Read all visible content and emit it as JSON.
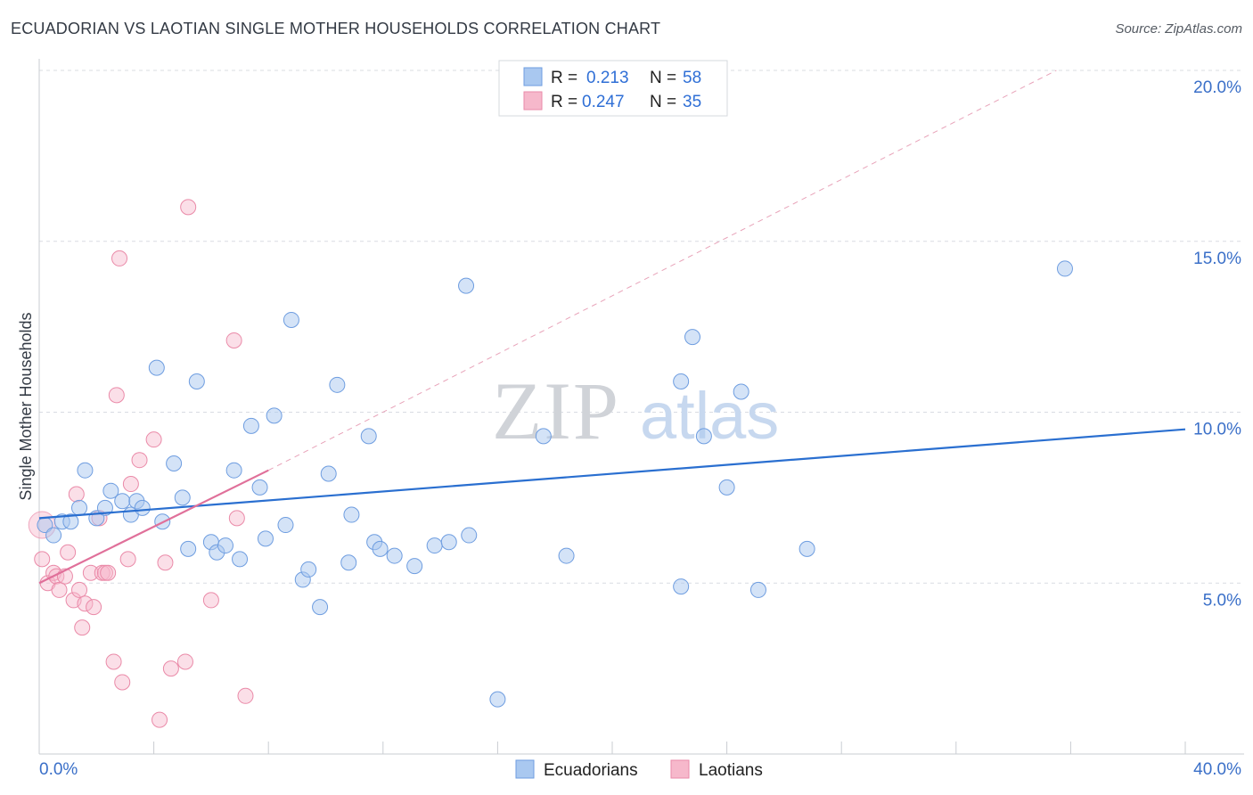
{
  "title": "ECUADORIAN VS LAOTIAN SINGLE MOTHER HOUSEHOLDS CORRELATION CHART",
  "source": "Source: ZipAtlas.com",
  "watermark": {
    "zip": "ZIP",
    "atlas": "atlas"
  },
  "colors": {
    "blue_fill": "#a9c8f0",
    "blue_stroke": "#6e9de0",
    "blue_line": "#2a6fd0",
    "pink_fill": "#f6b8cb",
    "pink_stroke": "#ea8aa8",
    "pink_line": "#e0709a",
    "grid": "#d9dce2",
    "axis_text": "#3a6fc8"
  },
  "legend": [
    {
      "r_label": "R =",
      "r_value": "0.213",
      "n_label": "N =",
      "n_value": "58",
      "series": "Ecuadorians"
    },
    {
      "r_label": "R =",
      "r_value": "0.247",
      "n_label": "N =",
      "n_value": "35",
      "series": "Laotians"
    }
  ],
  "chart_data": {
    "type": "scatter",
    "title": "ECUADORIAN VS LAOTIAN SINGLE MOTHER HOUSEHOLDS CORRELATION CHART",
    "xlabel": "",
    "ylabel": "Single Mother Households",
    "xlim": [
      0,
      40
    ],
    "ylim": [
      0,
      20
    ],
    "x_tick_labels": [
      "0.0%",
      "40.0%"
    ],
    "y_ticks": [
      5,
      10,
      15,
      20
    ],
    "y_tick_labels": [
      "5.0%",
      "10.0%",
      "15.0%",
      "20.0%"
    ],
    "series": [
      {
        "name": "Ecuadorians",
        "trend": {
          "x": [
            0,
            40
          ],
          "y": [
            6.9,
            9.5
          ]
        },
        "points": [
          [
            0.2,
            6.7
          ],
          [
            0.5,
            6.4
          ],
          [
            0.8,
            6.8
          ],
          [
            1.1,
            6.8
          ],
          [
            1.4,
            7.2
          ],
          [
            1.6,
            8.3
          ],
          [
            2.0,
            6.9
          ],
          [
            2.3,
            7.2
          ],
          [
            2.5,
            7.7
          ],
          [
            2.9,
            7.4
          ],
          [
            3.2,
            7.0
          ],
          [
            3.4,
            7.4
          ],
          [
            3.6,
            7.2
          ],
          [
            4.1,
            11.3
          ],
          [
            4.3,
            6.8
          ],
          [
            4.7,
            8.5
          ],
          [
            5.0,
            7.5
          ],
          [
            5.2,
            6.0
          ],
          [
            5.5,
            10.9
          ],
          [
            6.0,
            6.2
          ],
          [
            6.2,
            5.9
          ],
          [
            6.5,
            6.1
          ],
          [
            6.8,
            8.3
          ],
          [
            7.0,
            5.7
          ],
          [
            7.4,
            9.6
          ],
          [
            7.7,
            7.8
          ],
          [
            7.9,
            6.3
          ],
          [
            8.2,
            9.9
          ],
          [
            8.6,
            6.7
          ],
          [
            8.8,
            12.7
          ],
          [
            9.2,
            5.1
          ],
          [
            9.4,
            5.4
          ],
          [
            9.8,
            4.3
          ],
          [
            10.1,
            8.2
          ],
          [
            10.4,
            10.8
          ],
          [
            10.8,
            5.6
          ],
          [
            10.9,
            7.0
          ],
          [
            11.5,
            9.3
          ],
          [
            11.7,
            6.2
          ],
          [
            11.9,
            6.0
          ],
          [
            12.4,
            5.8
          ],
          [
            13.1,
            5.5
          ],
          [
            13.8,
            6.1
          ],
          [
            14.3,
            6.2
          ],
          [
            14.9,
            13.7
          ],
          [
            15.0,
            6.4
          ],
          [
            16.0,
            1.6
          ],
          [
            17.6,
            9.3
          ],
          [
            18.4,
            5.8
          ],
          [
            22.4,
            4.9
          ],
          [
            22.4,
            10.9
          ],
          [
            22.8,
            12.2
          ],
          [
            23.2,
            9.3
          ],
          [
            24.0,
            7.8
          ],
          [
            24.5,
            10.6
          ],
          [
            25.1,
            4.8
          ],
          [
            26.8,
            6.0
          ],
          [
            35.8,
            14.2
          ]
        ]
      },
      {
        "name": "Laotians",
        "trend": {
          "x": [
            0,
            8.0
          ],
          "y": [
            5.0,
            8.3
          ]
        },
        "points": [
          [
            0.1,
            5.7
          ],
          [
            0.3,
            5.0
          ],
          [
            0.5,
            5.3
          ],
          [
            0.6,
            5.2
          ],
          [
            0.7,
            4.8
          ],
          [
            0.9,
            5.2
          ],
          [
            1.0,
            5.9
          ],
          [
            1.2,
            4.5
          ],
          [
            1.3,
            7.6
          ],
          [
            1.4,
            4.8
          ],
          [
            1.5,
            3.7
          ],
          [
            1.6,
            4.4
          ],
          [
            1.8,
            5.3
          ],
          [
            1.9,
            4.3
          ],
          [
            2.1,
            6.9
          ],
          [
            2.2,
            5.3
          ],
          [
            2.3,
            5.3
          ],
          [
            2.4,
            5.3
          ],
          [
            2.6,
            2.7
          ],
          [
            2.7,
            10.5
          ],
          [
            2.8,
            14.5
          ],
          [
            2.9,
            2.1
          ],
          [
            3.1,
            5.7
          ],
          [
            3.2,
            7.9
          ],
          [
            3.5,
            8.6
          ],
          [
            4.0,
            9.2
          ],
          [
            4.2,
            1.0
          ],
          [
            4.4,
            5.6
          ],
          [
            4.6,
            2.5
          ],
          [
            5.1,
            2.7
          ],
          [
            5.2,
            16.0
          ],
          [
            6.0,
            4.5
          ],
          [
            6.8,
            12.1
          ],
          [
            6.9,
            6.9
          ],
          [
            7.2,
            1.7
          ]
        ]
      }
    ],
    "reference_line": {
      "x": [
        8.0,
        35.5
      ],
      "y": [
        8.3,
        20.0
      ]
    },
    "bottom_legend": [
      "Ecuadorians",
      "Laotians"
    ]
  }
}
